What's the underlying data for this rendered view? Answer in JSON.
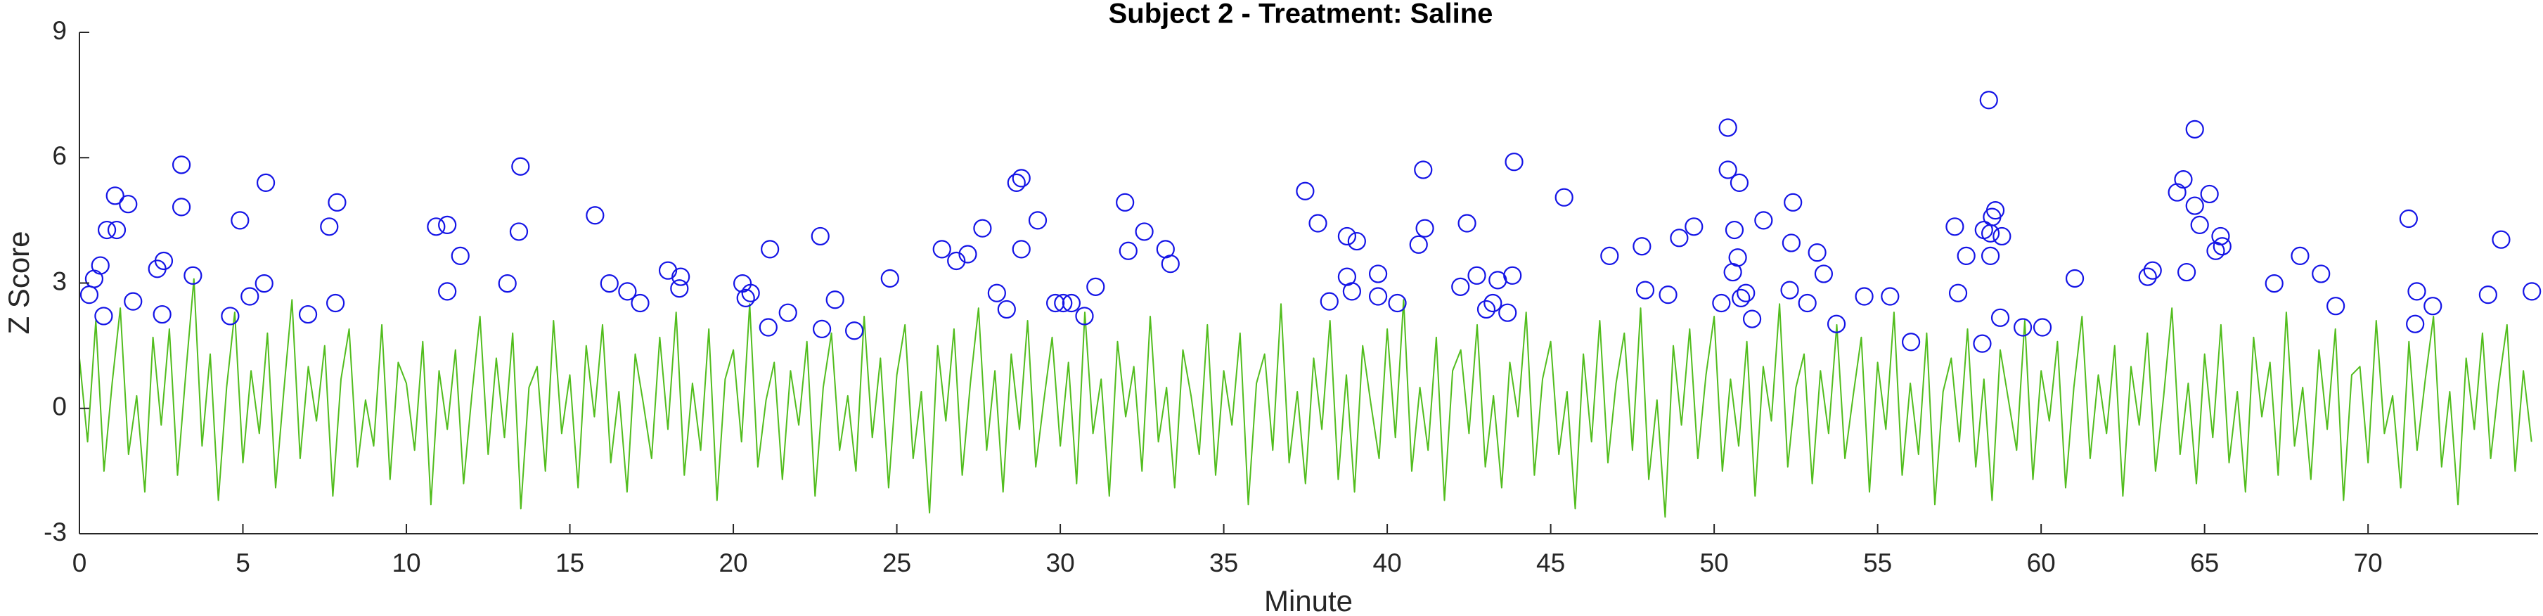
{
  "chart_data": {
    "type": "line",
    "title": "Subject 2 - Treatment: Saline",
    "xlabel": "Minute",
    "ylabel": "Z Score",
    "xlim": [
      0,
      75.2
    ],
    "ylim": [
      -3,
      9
    ],
    "xticks": [
      0,
      5,
      10,
      15,
      20,
      25,
      30,
      35,
      40,
      45,
      50,
      55,
      60,
      65,
      70
    ],
    "yticks": [
      -3,
      0,
      3,
      6,
      9
    ],
    "series": [
      {
        "type": "line",
        "color": "#52bd1e",
        "x": [
          0,
          0.25,
          0.5,
          0.75,
          1,
          1.25,
          1.5,
          1.75,
          2,
          2.25,
          2.5,
          2.75,
          3,
          3.25,
          3.5,
          3.75,
          4,
          4.25,
          4.5,
          4.75,
          5,
          5.25,
          5.5,
          5.75,
          6,
          6.25,
          6.5,
          6.75,
          7,
          7.25,
          7.5,
          7.75,
          8,
          8.25,
          8.5,
          8.75,
          9,
          9.25,
          9.5,
          9.75,
          10,
          10.25,
          10.5,
          10.75,
          11,
          11.25,
          11.5,
          11.75,
          12,
          12.25,
          12.5,
          12.75,
          13,
          13.25,
          13.5,
          13.75,
          14,
          14.25,
          14.5,
          14.75,
          15,
          15.25,
          15.5,
          15.75,
          16,
          16.25,
          16.5,
          16.75,
          17,
          17.25,
          17.5,
          17.75,
          18,
          18.25,
          18.5,
          18.75,
          19,
          19.25,
          19.5,
          19.75,
          20,
          20.25,
          20.5,
          20.75,
          21,
          21.25,
          21.5,
          21.75,
          22,
          22.25,
          22.5,
          22.75,
          23,
          23.25,
          23.5,
          23.75,
          24,
          24.25,
          24.5,
          24.75,
          25,
          25.25,
          25.5,
          25.75,
          26,
          26.25,
          26.5,
          26.75,
          27,
          27.25,
          27.5,
          27.75,
          28,
          28.25,
          28.5,
          28.75,
          29,
          29.25,
          29.5,
          29.75,
          30,
          30.25,
          30.5,
          30.75,
          31,
          31.25,
          31.5,
          31.75,
          32,
          32.25,
          32.5,
          32.75,
          33,
          33.25,
          33.5,
          33.75,
          34,
          34.25,
          34.5,
          34.75,
          35,
          35.25,
          35.5,
          35.75,
          36,
          36.25,
          36.5,
          36.75,
          37,
          37.25,
          37.5,
          37.75,
          38,
          38.25,
          38.5,
          38.75,
          39,
          39.25,
          39.5,
          39.75,
          40,
          40.25,
          40.5,
          40.75,
          41,
          41.25,
          41.5,
          41.75,
          42,
          42.25,
          42.5,
          42.75,
          43,
          43.25,
          43.5,
          43.75,
          44,
          44.25,
          44.5,
          44.75,
          45,
          45.25,
          45.5,
          45.75,
          46,
          46.25,
          46.5,
          46.75,
          47,
          47.25,
          47.5,
          47.75,
          48,
          48.25,
          48.5,
          48.75,
          49,
          49.25,
          49.5,
          49.75,
          50,
          50.25,
          50.5,
          50.75,
          51,
          51.25,
          51.5,
          51.75,
          52,
          52.25,
          52.5,
          52.75,
          53,
          53.25,
          53.5,
          53.75,
          54,
          54.25,
          54.5,
          54.75,
          55,
          55.25,
          55.5,
          55.75,
          56,
          56.25,
          56.5,
          56.75,
          57,
          57.25,
          57.5,
          57.75,
          58,
          58.25,
          58.5,
          58.75,
          59,
          59.25,
          59.5,
          59.75,
          60,
          60.25,
          60.5,
          60.75,
          61,
          61.25,
          61.5,
          61.75,
          62,
          62.25,
          62.5,
          62.75,
          63,
          63.25,
          63.5,
          63.75,
          64,
          64.25,
          64.5,
          64.75,
          65,
          65.25,
          65.5,
          65.75,
          66,
          66.25,
          66.5,
          66.75,
          67,
          67.25,
          67.5,
          67.75,
          68,
          68.25,
          68.5,
          68.75,
          69,
          69.25,
          69.5,
          69.75,
          70,
          70.25,
          70.5,
          70.75,
          71,
          71.25,
          71.5,
          71.75,
          72,
          72.25,
          72.5,
          72.75,
          73,
          73.25,
          73.5,
          73.75,
          74,
          74.25,
          74.5,
          74.75,
          75
        ],
        "values": [
          1.2,
          -0.8,
          2.1,
          -1.5,
          0.6,
          2.4,
          -1.1,
          0.3,
          -2.0,
          1.7,
          -0.4,
          1.9,
          -1.6,
          0.8,
          3.1,
          -0.9,
          1.3,
          -2.2,
          0.5,
          2.3,
          -1.3,
          0.9,
          -0.6,
          1.8,
          -1.9,
          0.4,
          2.6,
          -1.2,
          1.0,
          -0.3,
          1.5,
          -2.1,
          0.7,
          1.9,
          -1.4,
          0.2,
          -0.9,
          2.0,
          -1.7,
          1.1,
          0.6,
          -1.0,
          1.6,
          -2.3,
          0.9,
          -0.5,
          1.4,
          -1.8,
          0.3,
          2.2,
          -1.1,
          1.2,
          -0.7,
          1.8,
          -2.4,
          0.5,
          1.0,
          -1.5,
          2.1,
          -0.6,
          0.8,
          -1.9,
          1.5,
          -0.2,
          2.0,
          -1.3,
          0.4,
          -2.0,
          1.3,
          0.1,
          -1.2,
          1.7,
          -0.5,
          2.3,
          -1.6,
          0.6,
          -1.0,
          1.9,
          -2.2,
          0.7,
          1.4,
          -0.8,
          2.5,
          -1.4,
          0.2,
          1.1,
          -1.7,
          0.9,
          -0.4,
          1.6,
          -2.1,
          0.5,
          1.8,
          -1.0,
          0.3,
          -1.5,
          2.2,
          -0.7,
          1.2,
          -1.9,
          0.8,
          2.0,
          -1.2,
          0.4,
          -2.5,
          1.5,
          -0.3,
          1.9,
          -1.6,
          0.6,
          2.4,
          -1.0,
          0.9,
          -2.0,
          1.3,
          -0.5,
          2.1,
          -1.4,
          0.2,
          1.7,
          -0.9,
          1.1,
          -1.8,
          2.3,
          -0.6,
          0.7,
          -2.1,
          1.6,
          -0.2,
          1.0,
          -1.5,
          2.2,
          -0.8,
          0.5,
          -1.9,
          1.4,
          0.3,
          -1.1,
          2.0,
          -1.6,
          0.9,
          -0.4,
          1.8,
          -2.3,
          0.6,
          1.3,
          -1.0,
          2.5,
          -1.3,
          0.4,
          -1.8,
          1.2,
          -0.5,
          2.1,
          -1.7,
          0.8,
          -2.0,
          1.5,
          0.1,
          -1.2,
          1.9,
          -0.7,
          2.6,
          -1.5,
          0.5,
          -1.0,
          1.7,
          -2.2,
          0.9,
          1.4,
          -0.6,
          2.0,
          -1.4,
          0.3,
          -1.9,
          1.1,
          -0.2,
          2.3,
          -1.6,
          0.7,
          1.6,
          -1.1,
          0.4,
          -2.4,
          1.3,
          -0.8,
          2.1,
          -1.3,
          0.6,
          1.8,
          -1.0,
          2.4,
          -1.7,
          0.2,
          -2.6,
          1.5,
          -0.4,
          1.9,
          -1.2,
          0.8,
          2.2,
          -1.5,
          0.7,
          -0.9,
          1.6,
          -2.1,
          1.0,
          -0.3,
          2.5,
          -1.4,
          0.5,
          1.3,
          -1.8,
          0.9,
          -0.6,
          2.0,
          -1.2,
          0.3,
          1.7,
          -2.0,
          1.1,
          -0.5,
          2.3,
          -1.6,
          0.6,
          -1.1,
          1.8,
          -2.3,
          0.4,
          1.2,
          -0.8,
          1.9,
          -1.4,
          0.7,
          -2.2,
          1.4,
          0.2,
          -1.0,
          2.1,
          -1.7,
          0.9,
          -0.3,
          1.6,
          -1.9,
          0.5,
          2.2,
          -1.2,
          0.8,
          -0.6,
          1.5,
          -2.1,
          1.0,
          -0.4,
          1.8,
          -1.5,
          0.3,
          2.4,
          -1.1,
          0.6,
          -1.8,
          1.3,
          -0.7,
          2.0,
          -1.3,
          0.4,
          -2.0,
          1.7,
          -0.2,
          1.1,
          -1.6,
          2.3,
          -0.9,
          0.5,
          -1.7,
          1.4,
          -0.5,
          1.9,
          -2.2,
          0.8,
          1.0,
          -1.3,
          2.1,
          -0.6,
          0.3,
          -1.9,
          1.6,
          -1.0,
          0.7,
          2.2,
          -1.4,
          0.4,
          -2.3,
          1.2,
          -0.5,
          1.8,
          -1.2,
          0.6,
          2.0,
          -1.5,
          0.9,
          -0.8
        ]
      },
      {
        "type": "scatter",
        "color": "#1414e6",
        "x": [
          0.3,
          0.45,
          0.64,
          0.74,
          0.84,
          1.09,
          1.14,
          1.49,
          1.64,
          2.38,
          2.53,
          2.58,
          3.12,
          3.12,
          3.47,
          4.61,
          4.91,
          5.21,
          5.65,
          5.7,
          6.99,
          7.64,
          7.83,
          7.88,
          10.91,
          11.25,
          11.25,
          11.65,
          13.09,
          13.44,
          13.49,
          15.77,
          16.21,
          16.76,
          17.15,
          18.0,
          18.35,
          18.39,
          20.28,
          20.38,
          20.53,
          21.07,
          21.12,
          21.67,
          22.66,
          22.71,
          23.11,
          23.7,
          24.79,
          26.38,
          26.82,
          27.17,
          27.62,
          28.06,
          28.36,
          28.66,
          28.81,
          28.81,
          29.31,
          29.85,
          30.09,
          30.34,
          30.74,
          31.08,
          31.98,
          32.08,
          32.57,
          33.22,
          33.37,
          37.49,
          37.88,
          38.23,
          38.77,
          38.77,
          38.92,
          39.07,
          39.72,
          39.72,
          40.31,
          40.96,
          41.1,
          41.15,
          42.24,
          42.44,
          42.74,
          43.03,
          43.23,
          43.38,
          43.68,
          43.83,
          43.88,
          45.41,
          46.8,
          47.79,
          47.89,
          48.59,
          48.93,
          49.38,
          50.22,
          50.42,
          50.42,
          50.57,
          50.62,
          50.72,
          50.77,
          50.82,
          50.97,
          51.16,
          51.51,
          52.31,
          52.36,
          52.41,
          52.85,
          53.15,
          53.35,
          53.74,
          54.59,
          55.38,
          56.02,
          57.36,
          57.46,
          57.71,
          58.2,
          58.25,
          58.4,
          58.45,
          58.45,
          58.5,
          58.6,
          58.75,
          58.8,
          59.44,
          60.04,
          61.03,
          63.26,
          63.41,
          64.16,
          64.35,
          64.45,
          64.7,
          64.7,
          64.85,
          65.15,
          65.34,
          65.49,
          65.54,
          67.13,
          67.92,
          68.56,
          69.01,
          71.24,
          71.44,
          71.49,
          71.98,
          73.67,
          74.07,
          75.01
        ],
        "values": [
          2.72,
          3.1,
          3.42,
          2.21,
          4.27,
          5.09,
          4.27,
          4.89,
          2.56,
          3.34,
          2.25,
          3.53,
          5.83,
          4.82,
          3.18,
          2.21,
          4.5,
          2.68,
          2.99,
          5.4,
          2.25,
          4.35,
          2.52,
          4.93,
          4.35,
          4.39,
          2.8,
          3.65,
          2.99,
          4.23,
          5.79,
          4.62,
          2.99,
          2.8,
          2.52,
          3.3,
          2.87,
          3.15,
          2.99,
          2.64,
          2.76,
          1.94,
          3.81,
          2.29,
          4.12,
          1.9,
          2.6,
          1.86,
          3.11,
          3.81,
          3.53,
          3.69,
          4.31,
          2.76,
          2.37,
          5.4,
          5.51,
          3.81,
          4.5,
          2.52,
          2.52,
          2.52,
          2.21,
          2.91,
          4.93,
          3.77,
          4.23,
          3.81,
          3.46,
          5.2,
          4.43,
          2.56,
          4.12,
          3.15,
          2.8,
          4.0,
          3.22,
          2.68,
          2.52,
          3.92,
          5.71,
          4.31,
          2.91,
          4.43,
          3.18,
          2.37,
          2.52,
          3.07,
          2.29,
          3.18,
          5.9,
          5.05,
          3.65,
          3.88,
          2.83,
          2.72,
          4.08,
          4.35,
          2.52,
          6.72,
          5.71,
          3.26,
          4.27,
          3.61,
          5.4,
          2.64,
          2.76,
          2.14,
          4.5,
          2.83,
          3.96,
          4.93,
          2.52,
          3.73,
          3.22,
          2.02,
          2.68,
          2.68,
          1.59,
          4.35,
          2.76,
          3.65,
          1.55,
          4.27,
          7.38,
          4.19,
          3.65,
          4.58,
          4.74,
          2.17,
          4.12,
          1.94,
          1.94,
          3.11,
          3.15,
          3.3,
          5.17,
          5.48,
          3.26,
          6.68,
          4.85,
          4.39,
          5.13,
          3.77,
          4.12,
          3.88,
          2.99,
          3.65,
          3.22,
          2.45,
          4.54,
          2.02,
          2.8,
          2.45,
          2.72,
          4.04,
          2.8
        ]
      }
    ]
  }
}
